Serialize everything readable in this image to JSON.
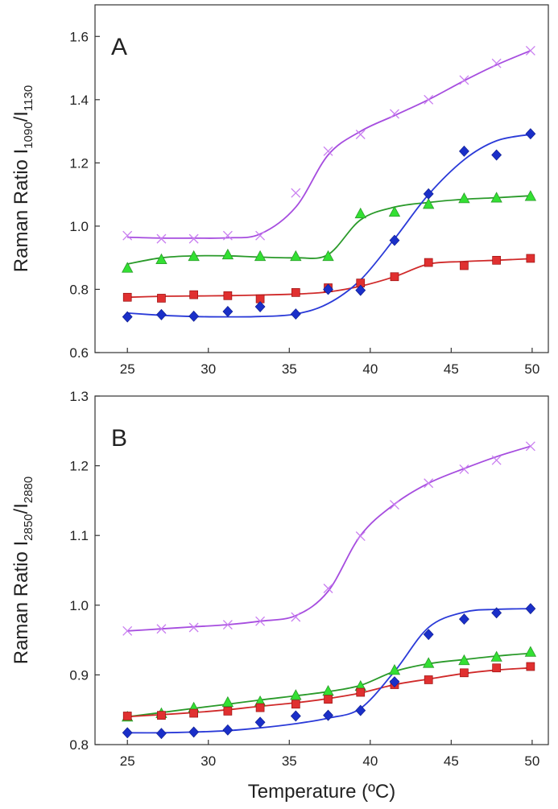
{
  "chart_data": [
    {
      "type": "line",
      "panel_label": "A",
      "ylabel": {
        "base": "Raman Ratio I",
        "sub1": "1090",
        "sep": "/I",
        "sub2": "1130"
      },
      "xlabel": "",
      "xlim": [
        23,
        51
      ],
      "ylim": [
        0.6,
        1.7
      ],
      "xticks": [
        25,
        30,
        35,
        40,
        45,
        50
      ],
      "yticks": [
        0.6,
        0.8,
        1.0,
        1.2,
        1.4,
        1.6
      ],
      "tick_decimals": 1,
      "x": [
        25,
        27.1,
        29.1,
        31.2,
        33.2,
        35.4,
        37.4,
        39.4,
        41.5,
        43.6,
        45.8,
        47.8,
        49.9
      ],
      "series": [
        {
          "marker": "x",
          "color": "#b04adf",
          "fill": "#c97ef0",
          "values": [
            0.97,
            0.96,
            0.96,
            0.97,
            0.97,
            1.105,
            1.237,
            1.29,
            1.355,
            1.4,
            1.462,
            1.515,
            1.555
          ]
        },
        {
          "marker": "triangle",
          "color": "#2a9a2a",
          "fill": "#33e033",
          "values": [
            0.868,
            0.895,
            0.905,
            0.91,
            0.905,
            0.905,
            0.905,
            1.04,
            1.045,
            1.07,
            1.088,
            1.09,
            1.095
          ]
        },
        {
          "marker": "square",
          "color": "#cc2020",
          "fill": "#e03030",
          "values": [
            0.775,
            0.772,
            0.783,
            0.78,
            0.77,
            0.79,
            0.805,
            0.82,
            0.84,
            0.885,
            0.875,
            0.892,
            0.898
          ]
        },
        {
          "marker": "diamond",
          "color": "#1a2fc8",
          "fill": "#1a2fc8",
          "values": [
            0.713,
            0.72,
            0.715,
            0.73,
            0.745,
            0.722,
            0.8,
            0.797,
            0.955,
            1.102,
            1.237,
            1.225,
            1.292
          ]
        }
      ],
      "fit_lines": [
        {
          "color": "#a64ddf",
          "values": [
            0.965,
            0.962,
            0.962,
            0.963,
            0.975,
            1.06,
            1.225,
            1.3,
            1.35,
            1.4,
            1.46,
            1.51,
            1.555
          ]
        },
        {
          "color": "#2a9a2a",
          "values": [
            0.88,
            0.9,
            0.906,
            0.906,
            0.902,
            0.9,
            0.91,
            1.02,
            1.06,
            1.075,
            1.085,
            1.09,
            1.096
          ]
        },
        {
          "color": "#d02a2a",
          "values": [
            0.775,
            0.778,
            0.779,
            0.78,
            0.782,
            0.785,
            0.792,
            0.81,
            0.84,
            0.88,
            0.888,
            0.892,
            0.897
          ]
        },
        {
          "color": "#2a3ad8",
          "values": [
            0.725,
            0.718,
            0.714,
            0.713,
            0.714,
            0.722,
            0.755,
            0.83,
            0.96,
            1.1,
            1.21,
            1.27,
            1.29
          ]
        }
      ]
    },
    {
      "type": "line",
      "panel_label": "B",
      "ylabel": {
        "base": "Raman Ratio I",
        "sub1": "2850",
        "sep": "/I",
        "sub2": "2880"
      },
      "xlabel": "Temperature (ºC)",
      "xlim": [
        23,
        51
      ],
      "ylim": [
        0.8,
        1.3
      ],
      "xticks": [
        25,
        30,
        35,
        40,
        45,
        50
      ],
      "yticks": [
        0.8,
        0.9,
        1.0,
        1.1,
        1.2,
        1.3
      ],
      "tick_decimals": 1,
      "x": [
        25,
        27.1,
        29.1,
        31.2,
        33.2,
        35.4,
        37.4,
        39.4,
        41.5,
        43.6,
        45.8,
        47.8,
        49.9
      ],
      "series": [
        {
          "marker": "x",
          "color": "#b04adf",
          "fill": "#c97ef0",
          "values": [
            0.963,
            0.966,
            0.968,
            0.972,
            0.977,
            0.983,
            1.024,
            1.099,
            1.144,
            1.175,
            1.195,
            1.208,
            1.228
          ]
        },
        {
          "marker": "triangle",
          "color": "#2a9a2a",
          "fill": "#33e033",
          "values": [
            0.84,
            0.845,
            0.853,
            0.861,
            0.862,
            0.871,
            0.877,
            0.884,
            0.907,
            0.917,
            0.921,
            0.926,
            0.933
          ]
        },
        {
          "marker": "square",
          "color": "#cc2020",
          "fill": "#e03030",
          "values": [
            0.841,
            0.842,
            0.845,
            0.848,
            0.853,
            0.858,
            0.865,
            0.875,
            0.886,
            0.893,
            0.903,
            0.91,
            0.912
          ]
        },
        {
          "marker": "diamond",
          "color": "#1a2fc8",
          "fill": "#1a2fc8",
          "values": [
            0.817,
            0.816,
            0.818,
            0.821,
            0.832,
            0.841,
            0.842,
            0.849,
            0.89,
            0.958,
            0.98,
            0.989,
            0.995
          ]
        }
      ],
      "fit_lines": [
        {
          "color": "#a64ddf",
          "values": [
            0.963,
            0.966,
            0.969,
            0.972,
            0.977,
            0.985,
            1.02,
            1.1,
            1.145,
            1.175,
            1.196,
            1.213,
            1.228
          ]
        },
        {
          "color": "#2a9a2a",
          "values": [
            0.84,
            0.846,
            0.852,
            0.858,
            0.864,
            0.87,
            0.876,
            0.885,
            0.905,
            0.916,
            0.922,
            0.927,
            0.931
          ]
        },
        {
          "color": "#d02a2a",
          "values": [
            0.84,
            0.843,
            0.846,
            0.85,
            0.855,
            0.86,
            0.866,
            0.874,
            0.886,
            0.894,
            0.902,
            0.907,
            0.91
          ]
        },
        {
          "color": "#2a3ad8",
          "values": [
            0.817,
            0.817,
            0.818,
            0.82,
            0.824,
            0.83,
            0.838,
            0.852,
            0.905,
            0.968,
            0.99,
            0.994,
            0.995
          ]
        }
      ]
    }
  ]
}
